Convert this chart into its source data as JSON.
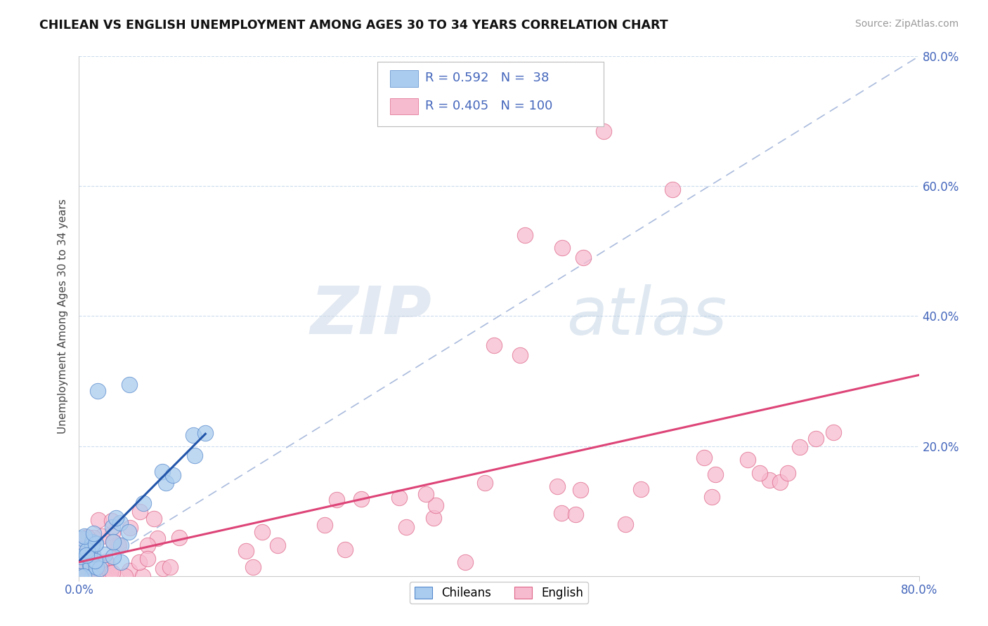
{
  "title": "CHILEAN VS ENGLISH UNEMPLOYMENT AMONG AGES 30 TO 34 YEARS CORRELATION CHART",
  "source": "Source: ZipAtlas.com",
  "xlim": [
    0.0,
    0.8
  ],
  "ylim": [
    0.0,
    0.8
  ],
  "legend_labels": [
    "Chileans",
    "English"
  ],
  "legend_r": [
    0.592,
    0.405
  ],
  "legend_n": [
    38,
    100
  ],
  "chilean_color": "#aaccee",
  "english_color": "#f7bbd0",
  "chilean_edge_color": "#5588cc",
  "english_edge_color": "#dd6688",
  "chilean_line_color": "#2255aa",
  "english_line_color": "#dd4477",
  "ref_line_color": "#aabbdd",
  "watermark_zip": "ZIP",
  "watermark_atlas": "atlas",
  "background_color": "#ffffff",
  "grid_color": "#ccddee",
  "ylabel": "Unemployment Among Ages 30 to 34 years",
  "tick_color": "#4466bb",
  "title_color": "#111111",
  "source_color": "#999999"
}
